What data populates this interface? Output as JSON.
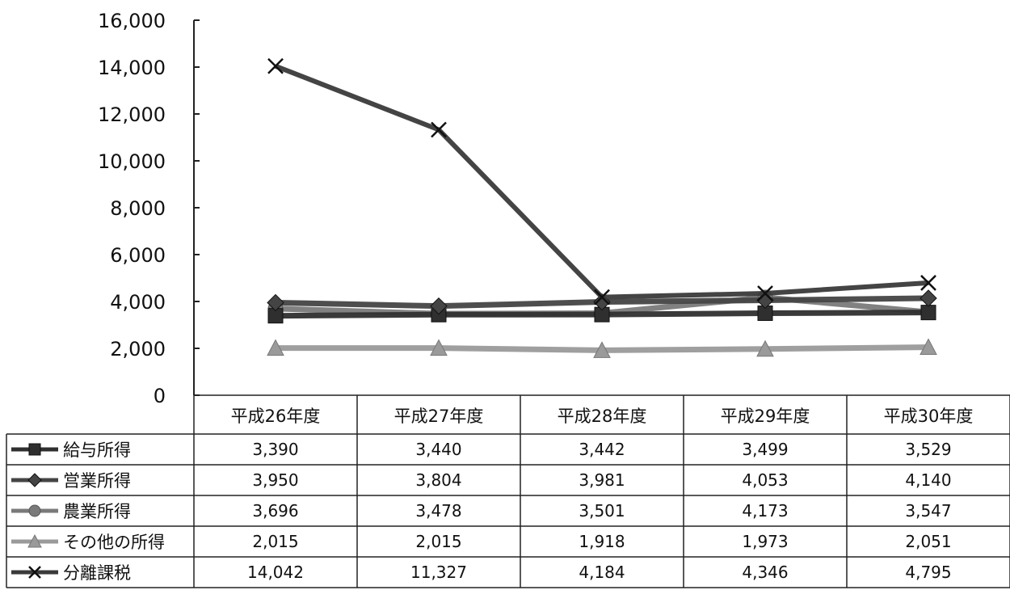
{
  "chart_data": {
    "type": "line",
    "categories": [
      "平成26年度",
      "平成27年度",
      "平成28年度",
      "平成29年度",
      "平成30年度"
    ],
    "ylim": [
      0,
      16000
    ],
    "yticks": [
      0,
      2000,
      4000,
      6000,
      8000,
      10000,
      12000,
      14000,
      16000
    ],
    "ytick_labels": [
      "0",
      "2,000",
      "4,000",
      "6,000",
      "8,000",
      "10,000",
      "12,000",
      "14,000",
      "16,000"
    ],
    "grid": false,
    "legend": "data-table-left",
    "series": [
      {
        "name": "給与所得",
        "marker": "square",
        "color": "#2f2f2f",
        "values": [
          3390,
          3440,
          3442,
          3499,
          3529
        ],
        "labels": [
          "3,390",
          "3,440",
          "3,442",
          "3,499",
          "3,529"
        ]
      },
      {
        "name": "営業所得",
        "marker": "diamond",
        "color": "#444444",
        "values": [
          3950,
          3804,
          3981,
          4053,
          4140
        ],
        "labels": [
          "3,950",
          "3,804",
          "3,981",
          "4,053",
          "4,140"
        ]
      },
      {
        "name": "農業所得",
        "marker": "circle",
        "color": "#7a7a7a",
        "values": [
          3696,
          3478,
          3501,
          4173,
          3547
        ],
        "labels": [
          "3,696",
          "3,478",
          "3,501",
          "4,173",
          "3,547"
        ]
      },
      {
        "name": "その他の所得",
        "marker": "triangle",
        "color": "#9a9a9a",
        "values": [
          2015,
          2015,
          1918,
          1973,
          2051
        ],
        "labels": [
          "2,015",
          "2,015",
          "1,918",
          "1,973",
          "2,051"
        ]
      },
      {
        "name": "分離課税",
        "marker": "x",
        "color": "#3a3a3a",
        "values": [
          14042,
          11327,
          4184,
          4346,
          4795
        ],
        "labels": [
          "14,042",
          "11,327",
          "4,184",
          "4,346",
          "4,795"
        ]
      }
    ]
  }
}
